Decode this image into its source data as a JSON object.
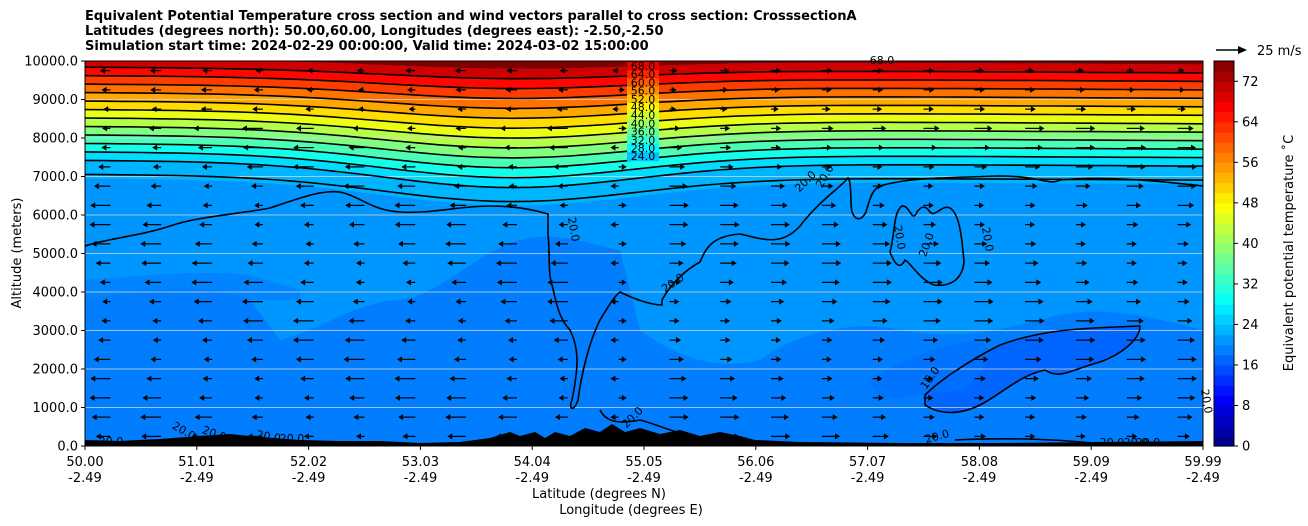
{
  "chart_data": {
    "type": "heatmap",
    "title_lines": [
      "Equivalent Potential Temperature cross section and wind vectors parallel to cross section: CrosssectionA",
      "Latitudes (degrees north): 50.00,60.00, Longitudes (degrees east): -2.50,-2.50",
      "Simulation start time: 2024-02-29 00:00:00, Valid time: 2024-03-02 15:00:00"
    ],
    "ylabel": "Altitude (meters)",
    "xlabel_1": "Latitude (degrees N)",
    "xlabel_2": "Longitude (degrees E)",
    "ylim": [
      0,
      10000
    ],
    "yticks": [
      "0.0",
      "1000.0",
      "2000.0",
      "3000.0",
      "4000.0",
      "5000.0",
      "6000.0",
      "7000.0",
      "8000.0",
      "9000.0",
      "10000.0"
    ],
    "xticks": [
      {
        "lat": "50.00",
        "lon": "-2.49"
      },
      {
        "lat": "51.01",
        "lon": "-2.49"
      },
      {
        "lat": "52.02",
        "lon": "-2.49"
      },
      {
        "lat": "53.03",
        "lon": "-2.49"
      },
      {
        "lat": "54.04",
        "lon": "-2.49"
      },
      {
        "lat": "55.05",
        "lon": "-2.49"
      },
      {
        "lat": "56.06",
        "lon": "-2.49"
      },
      {
        "lat": "57.07",
        "lon": "-2.49"
      },
      {
        "lat": "58.08",
        "lon": "-2.49"
      },
      {
        "lat": "59.09",
        "lon": "-2.49"
      },
      {
        "lat": "59.99",
        "lon": "-2.49"
      }
    ],
    "grid": "horizontal",
    "colorbar": {
      "label": "Equivalent potential temperature ˚C",
      "ticks": [
        "0",
        "8",
        "16",
        "24",
        "32",
        "40",
        "48",
        "56",
        "64",
        "72"
      ],
      "range": [
        0,
        76
      ]
    },
    "quiver_key": {
      "label": "25 m/s"
    },
    "contour_levels_upper": [
      "68.0",
      "64.0",
      "60.0",
      "56.0",
      "52.0",
      "48.0",
      "44.0",
      "40.0",
      "36.0",
      "32.0",
      "28.0",
      "24.0"
    ],
    "contour_labels_other": [
      "68.0",
      "20.0",
      "20.0",
      "20.0",
      "20.0",
      "20.0",
      "20.0",
      "20.0",
      "16.0",
      "20.0",
      "20.0",
      "20.0",
      "20.0",
      "20.0",
      "20.0",
      "20.0",
      "20.0",
      "20.0",
      "20.0",
      "20.0"
    ],
    "colors": {
      "background_field": "#0096ff",
      "cold_field": "#0066ff",
      "cool_field": "#007eff",
      "terrain": "#000000"
    }
  }
}
